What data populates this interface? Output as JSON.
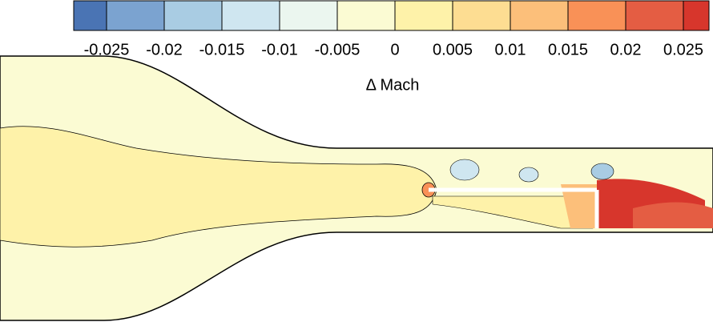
{
  "chart_data": {
    "type": "contour",
    "colorbar_label": "Δ Mach",
    "ticks": [
      -0.025,
      -0.02,
      -0.015,
      -0.01,
      -0.005,
      0,
      0.005,
      0.01,
      0.015,
      0.02,
      0.025
    ],
    "colors": [
      "#4a74b4",
      "#7ba3d0",
      "#a9cce3",
      "#cfe6f0",
      "#ebf6ef",
      "#fbfbd3",
      "#fef2a9",
      "#fddd92",
      "#fcbf7a",
      "#f99157",
      "#e45d43",
      "#d7362c"
    ]
  }
}
